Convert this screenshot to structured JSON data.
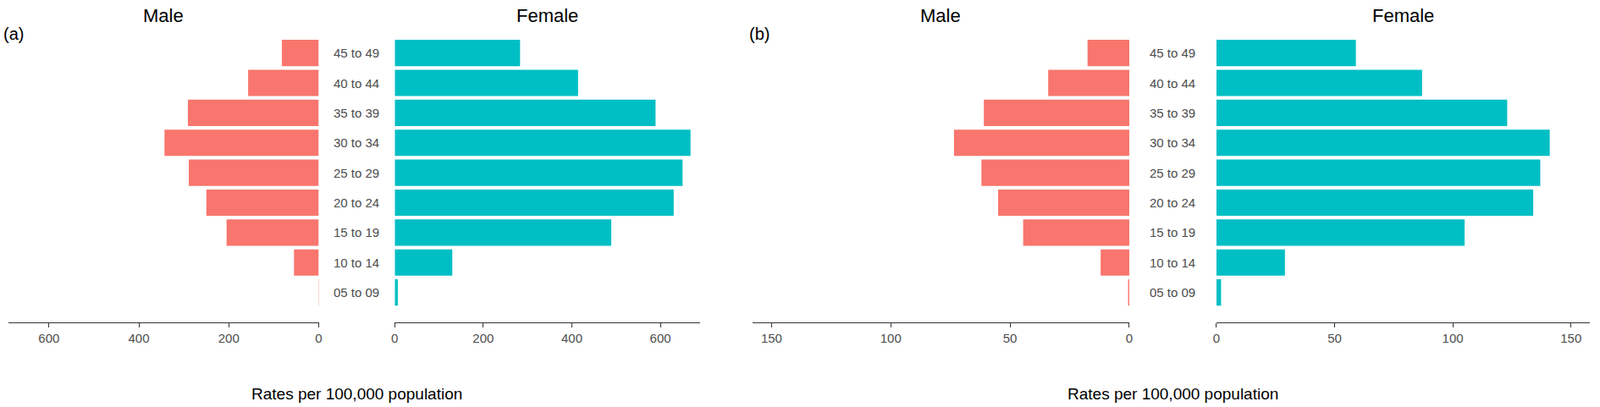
{
  "chart_data": [
    {
      "type": "bar",
      "orientation": "horizontal",
      "title": "(a)",
      "categories": [
        "45 to 49",
        "40 to 44",
        "35 to 39",
        "30 to 34",
        "25 to 29",
        "20 to 24",
        "15 to 19",
        "10 to 14",
        "05 to 09"
      ],
      "series": [
        {
          "name": "Male",
          "color": "#F8766D",
          "values": [
            82,
            157,
            291,
            343,
            289,
            250,
            205,
            55,
            1
          ]
        },
        {
          "name": "Female",
          "color": "#00BFC4",
          "values": [
            283,
            414,
            589,
            668,
            650,
            630,
            489,
            130,
            7
          ]
        }
      ],
      "x_label": "Rates per 100,000 population",
      "xlim": [
        0,
        690
      ],
      "xticks": [
        0,
        200,
        400,
        600
      ],
      "grid": false
    },
    {
      "type": "bar",
      "orientation": "horizontal",
      "title": "(b)",
      "categories": [
        "45 to 49",
        "40 to 44",
        "35 to 39",
        "30 to 34",
        "25 to 29",
        "20 to 24",
        "15 to 19",
        "10 to 14",
        "05 to 09"
      ],
      "series": [
        {
          "name": "Male",
          "color": "#F8766D",
          "values": [
            17.5,
            34,
            61,
            73.5,
            62,
            55,
            44.5,
            12,
            0.5
          ]
        },
        {
          "name": "Female",
          "color": "#00BFC4",
          "values": [
            59,
            87,
            123,
            141,
            137,
            134,
            105,
            29,
            2
          ]
        }
      ],
      "x_label": "Rates per 100,000 population",
      "xlim": [
        0,
        158
      ],
      "xticks": [
        0,
        50,
        100,
        150
      ],
      "grid": false
    }
  ]
}
